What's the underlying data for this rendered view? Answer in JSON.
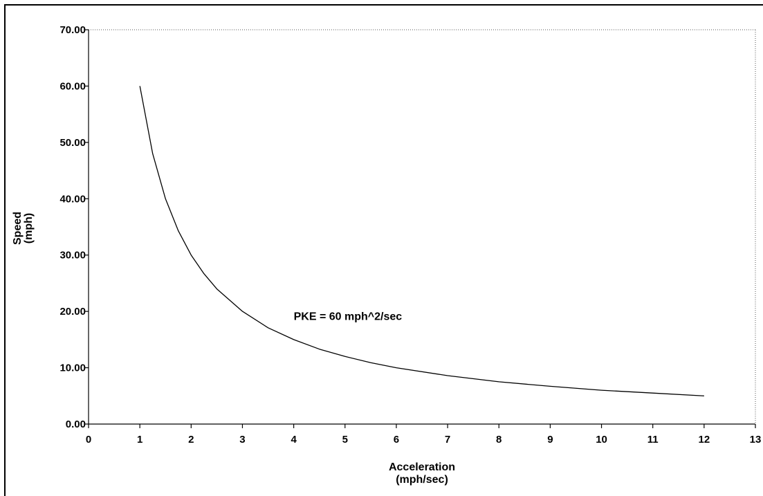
{
  "chart_data": {
    "type": "line",
    "title": "",
    "xlabel": [
      "Acceleration",
      "(mph/sec)"
    ],
    "ylabel": [
      "Speed",
      "(mph)"
    ],
    "xlim": [
      0,
      13
    ],
    "ylim": [
      0,
      70
    ],
    "xticks": [
      "0",
      "1",
      "2",
      "3",
      "4",
      "5",
      "6",
      "7",
      "8",
      "9",
      "10",
      "11",
      "12",
      "13"
    ],
    "yticks": [
      "0.00",
      "10.00",
      "20.00",
      "30.00",
      "40.00",
      "50.00",
      "60.00",
      "70.00"
    ],
    "grid": false,
    "annotation": {
      "text": "PKE = 60 mph^2/sec",
      "x": 4.0,
      "y": 18.5
    },
    "series": [
      {
        "x": [
          1,
          1.25,
          1.5,
          1.75,
          2,
          2.25,
          2.5,
          3,
          3.5,
          4,
          4.5,
          5,
          5.5,
          6,
          7,
          8,
          9,
          10,
          11,
          12
        ],
        "values": [
          60,
          48,
          40,
          34.3,
          30,
          26.7,
          24,
          20,
          17.1,
          15,
          13.3,
          12,
          10.9,
          10,
          8.6,
          7.5,
          6.7,
          6,
          5.5,
          5
        ]
      }
    ],
    "colors": {
      "line": "#000000",
      "axis": "#000000",
      "border": "#555555"
    }
  }
}
